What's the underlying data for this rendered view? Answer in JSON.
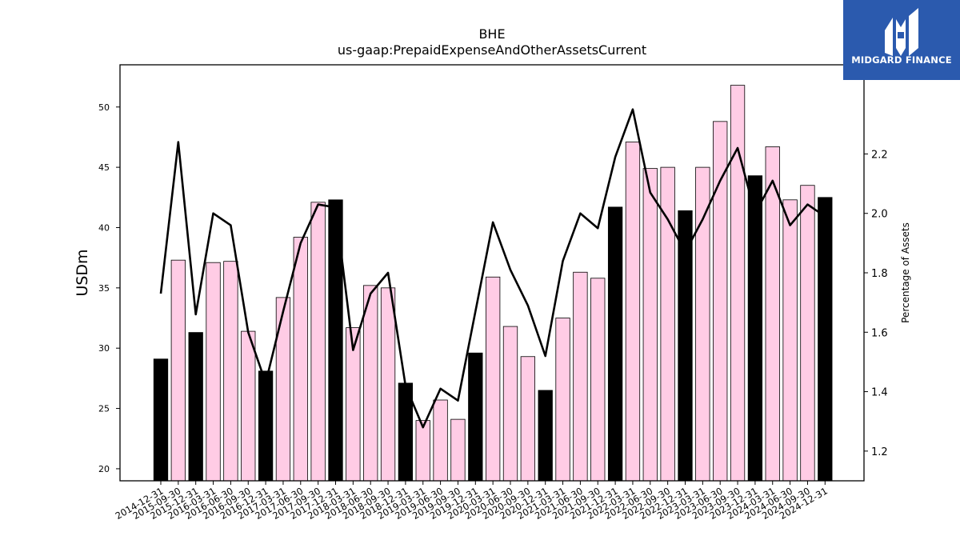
{
  "brand": {
    "name": "MIDGARD FINANCE",
    "bg_color": "#2B5AAE",
    "mark_icon": "midgard-m-logo-icon"
  },
  "chart_data": {
    "type": "bar",
    "title": "BHE",
    "subtitle": "us-gaap:PrepaidExpenseAndOtherAssetsCurrent",
    "ylabel": "USDm",
    "y2label": "Percentage of Assets",
    "ylim": [
      19.0,
      53.5
    ],
    "y2lim": [
      1.1,
      2.5
    ],
    "yticks": [
      20,
      25,
      30,
      35,
      40,
      45,
      50
    ],
    "y2ticks": [
      1.2,
      1.4,
      1.6,
      1.8,
      2.0,
      2.2
    ],
    "colors": {
      "annual": "#000000",
      "quarterly": "#FFCCE5",
      "line": "#000000"
    },
    "categories": [
      "2014-12-31",
      "2015-09-30",
      "2015-12-31",
      "2016-03-31",
      "2016-06-30",
      "2016-09-30",
      "2016-12-31",
      "2017-03-31",
      "2017-06-30",
      "2017-09-30",
      "2017-12-31",
      "2018-03-31",
      "2018-06-30",
      "2018-09-30",
      "2018-12-31",
      "2019-03-31",
      "2019-06-30",
      "2019-09-30",
      "2019-12-31",
      "2020-03-31",
      "2020-06-30",
      "2020-09-30",
      "2020-12-31",
      "2021-03-31",
      "2021-06-30",
      "2021-09-30",
      "2021-12-31",
      "2022-03-31",
      "2022-06-30",
      "2022-09-30",
      "2022-12-31",
      "2023-03-31",
      "2023-06-30",
      "2023-09-30",
      "2023-12-31",
      "2024-03-31",
      "2024-06-30",
      "2024-09-30",
      "2024-12-31"
    ],
    "series": [
      {
        "kind": "bar",
        "axis": "left",
        "values": [
          29.1,
          37.3,
          31.3,
          37.1,
          37.2,
          31.4,
          28.1,
          34.2,
          39.2,
          42.1,
          42.3,
          31.7,
          35.2,
          35.0,
          27.1,
          24.0,
          25.7,
          24.1,
          29.6,
          35.9,
          31.8,
          29.3,
          26.5,
          32.5,
          36.3,
          35.8,
          41.7,
          47.1,
          44.9,
          45.0,
          41.4,
          45.0,
          48.8,
          51.8,
          44.3,
          46.7,
          42.3,
          43.5,
          42.5
        ],
        "annual": [
          true,
          false,
          true,
          false,
          false,
          false,
          true,
          false,
          false,
          false,
          true,
          false,
          false,
          false,
          true,
          false,
          false,
          false,
          true,
          false,
          false,
          false,
          true,
          false,
          false,
          false,
          true,
          false,
          false,
          false,
          true,
          false,
          false,
          false,
          true,
          false,
          false,
          false,
          true
        ]
      },
      {
        "kind": "line",
        "axis": "right",
        "values": [
          1.73,
          2.24,
          1.66,
          2.0,
          1.96,
          1.6,
          1.43,
          1.67,
          1.9,
          2.03,
          2.02,
          1.54,
          1.73,
          1.8,
          1.42,
          1.28,
          1.41,
          1.37,
          1.67,
          1.97,
          1.81,
          1.69,
          1.52,
          1.84,
          2.0,
          1.95,
          2.19,
          2.35,
          2.07,
          1.98,
          1.87,
          1.98,
          2.11,
          2.22,
          2.0,
          2.11,
          1.96,
          2.03,
          1.99
        ]
      }
    ]
  }
}
